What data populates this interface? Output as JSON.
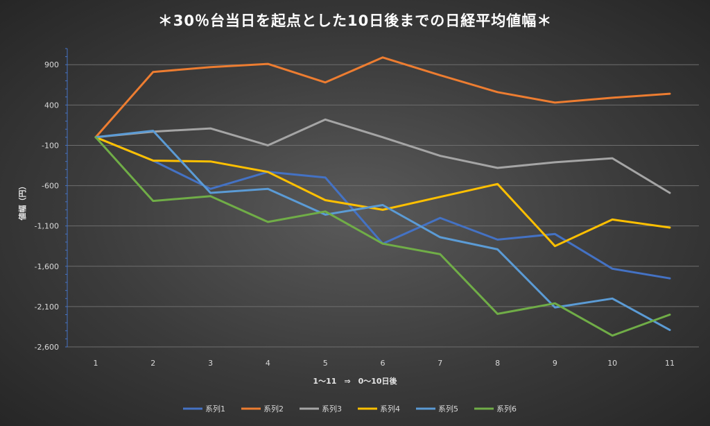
{
  "chart_data": {
    "type": "line",
    "title": "＊30％台当日を起点とした10日後までの日経平均値幅＊",
    "xlabel": "1～11　⇒　0～10日後",
    "ylabel": "値幅（円）",
    "categories": [
      "1",
      "2",
      "3",
      "4",
      "5",
      "6",
      "7",
      "8",
      "9",
      "10",
      "11"
    ],
    "ylim": [
      -2600,
      1100
    ],
    "yticks": [
      900,
      400,
      -100,
      -600,
      -1100,
      -1600,
      -2100,
      -2600
    ],
    "ytick_labels": [
      "900",
      "400",
      "-100",
      "-600",
      "-1,100",
      "-1,600",
      "-2,100",
      "-2,600"
    ],
    "grid": true,
    "legend_position": "bottom",
    "series": [
      {
        "name": "系列1",
        "color": "#4472c4",
        "values": [
          0,
          -290,
          -640,
          -430,
          -500,
          -1320,
          -1000,
          -1270,
          -1200,
          -1630,
          -1750
        ]
      },
      {
        "name": "系列2",
        "color": "#ed7d31",
        "values": [
          0,
          810,
          870,
          910,
          680,
          990,
          770,
          560,
          430,
          490,
          540
        ]
      },
      {
        "name": "系列3",
        "color": "#a5a5a5",
        "values": [
          0,
          70,
          110,
          -100,
          220,
          0,
          -230,
          -380,
          -310,
          -260,
          -690
        ]
      },
      {
        "name": "系列4",
        "color": "#ffc000",
        "values": [
          0,
          -290,
          -300,
          -430,
          -780,
          -900,
          -740,
          -580,
          -1350,
          -1020,
          -1120
        ]
      },
      {
        "name": "系列5",
        "color": "#5b9bd5",
        "values": [
          0,
          80,
          -690,
          -640,
          -960,
          -840,
          -1240,
          -1390,
          -2110,
          -2000,
          -2390
        ]
      },
      {
        "name": "系列6",
        "color": "#70ad47",
        "values": [
          0,
          -790,
          -730,
          -1050,
          -920,
          -1320,
          -1450,
          -2190,
          -2060,
          -2460,
          -2200
        ]
      }
    ]
  }
}
